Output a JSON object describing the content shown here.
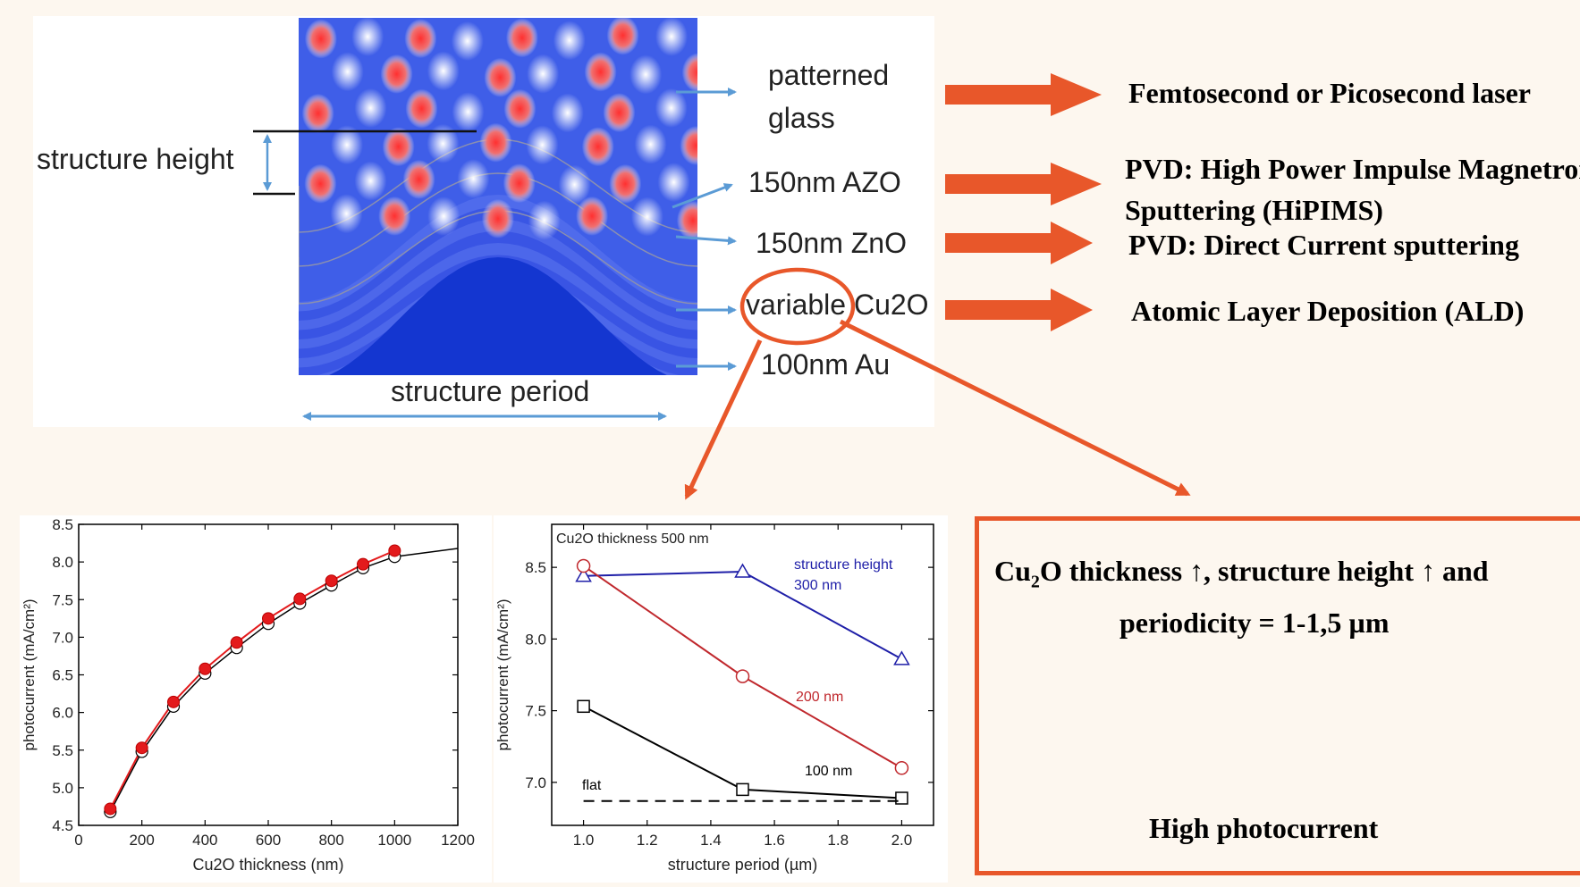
{
  "diagram": {
    "structure_height_label": "structure height",
    "structure_period_label": "structure period",
    "layers": [
      {
        "line1": "patterned",
        "line2": "glass"
      },
      {
        "line1": "150nm AZO"
      },
      {
        "line1": "150nm ZnO"
      },
      {
        "line1": "variable Cu2O"
      },
      {
        "line1": "100nm Au"
      }
    ]
  },
  "methods": [
    {
      "line1": "Femtosecond or Picosecond laser"
    },
    {
      "line1": "PVD: High Power Impulse Magnetron",
      "line2": "Sputtering (HiPIMS)"
    },
    {
      "line1": "PVD: Direct Current sputtering"
    },
    {
      "line1": "Atomic Layer Deposition (ALD)"
    }
  ],
  "summary": {
    "line1_pre": "Cu",
    "line1_sub": "2",
    "line1_post": "O thickness ↑, structure height ↑ and",
    "line2": "periodicity = 1-1,5 µm",
    "result": "High photocurrent"
  },
  "colors": {
    "arrow_orange": "#e8572a",
    "arrow_blue": "#5b9bd5",
    "series_red": "#e31a1c",
    "series_blue": "#1f1fa8",
    "series_darkred": "#c0282d"
  },
  "chart_data": [
    {
      "type": "scatter",
      "xlabel": "Cu2O thickness (nm)",
      "ylabel": "photocurrent (mA/cm²)",
      "xlim": [
        0,
        1200
      ],
      "ylim": [
        4.5,
        8.5
      ],
      "xticks": [
        0,
        200,
        400,
        600,
        800,
        1000,
        1200
      ],
      "yticks": [
        4.5,
        5.0,
        5.5,
        6.0,
        6.5,
        7.0,
        7.5,
        8.0,
        8.5
      ],
      "series": [
        {
          "x": [
            100,
            200,
            300,
            400,
            500,
            600,
            700,
            800,
            900,
            1000,
            1200
          ],
          "y": [
            4.68,
            5.48,
            6.08,
            6.52,
            6.86,
            7.18,
            7.45,
            7.69,
            7.92,
            8.07,
            8.18
          ]
        },
        {
          "x": [
            100,
            200,
            300,
            400,
            500,
            600,
            700,
            800,
            900,
            1000
          ],
          "y": [
            4.72,
            5.53,
            6.14,
            6.58,
            6.93,
            7.25,
            7.51,
            7.75,
            7.97,
            8.15
          ]
        }
      ]
    },
    {
      "type": "line",
      "title": "Cu2O thickness 500 nm",
      "xlabel": "structure period (µm)",
      "ylabel": "photocurrent (mA/cm²)",
      "xlim": [
        0.9,
        2.1
      ],
      "ylim": [
        6.7,
        8.8
      ],
      "xticks": [
        1.0,
        1.2,
        1.4,
        1.6,
        1.8,
        2.0
      ],
      "yticks": [
        7.0,
        7.5,
        8.0,
        8.5
      ],
      "series": [
        {
          "name": "structure height 300 nm",
          "marker": "triangle",
          "x": [
            1.0,
            1.5,
            2.0
          ],
          "y": [
            8.44,
            8.47,
            7.86
          ]
        },
        {
          "name": "200 nm",
          "marker": "circle",
          "x": [
            1.0,
            1.5,
            2.0
          ],
          "y": [
            8.51,
            7.74,
            7.1
          ]
        },
        {
          "name": "100 nm",
          "marker": "square",
          "x": [
            1.0,
            1.5,
            2.0
          ],
          "y": [
            7.53,
            6.95,
            6.89
          ]
        },
        {
          "name": "flat",
          "marker": "none",
          "dashed": true,
          "x": [
            1.0,
            2.0
          ],
          "y": [
            6.87,
            6.87
          ]
        }
      ],
      "label_line1": "structure height",
      "label_line2": "300 nm"
    }
  ]
}
